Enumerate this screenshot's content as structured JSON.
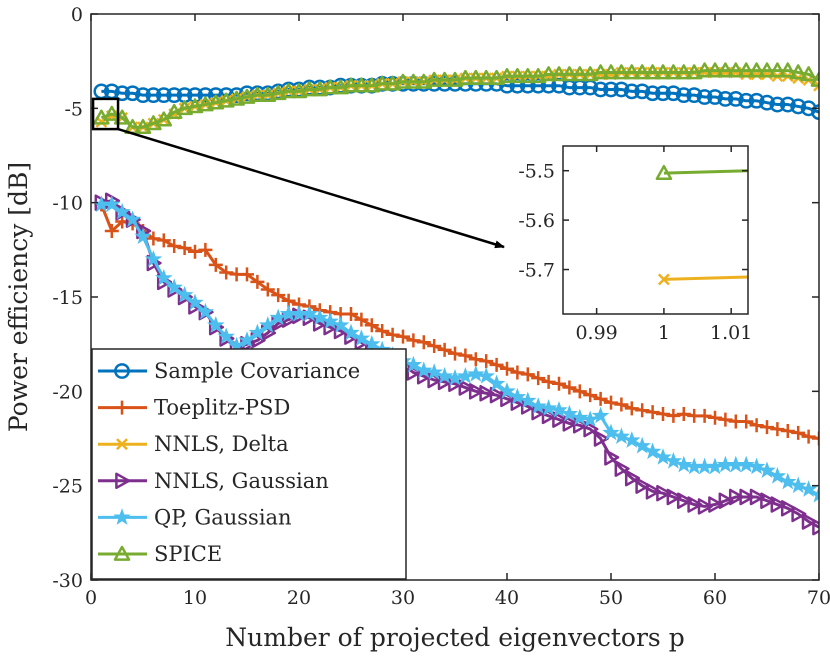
{
  "chart_data": {
    "type": "line",
    "title": "",
    "xlabel": "Number of projected eigenvectors p",
    "ylabel": "Power efficiency [dB]",
    "xlim": [
      0,
      70
    ],
    "ylim": [
      -30,
      0
    ],
    "xticks": [
      "0",
      "10",
      "20",
      "30",
      "40",
      "50",
      "60",
      "70"
    ],
    "yticks": [
      "0",
      "-5",
      "-10",
      "-15",
      "-20",
      "-25",
      "-30"
    ],
    "grid": false,
    "legend_position": "bottom-left",
    "colors": {
      "sample_covariance": "#0072BD",
      "toeplitz_psd": "#D95319",
      "nnls_delta": "#EDB120",
      "nnls_gaussian": "#7E2F8E",
      "qp_gaussian": "#4DBEEE",
      "spice": "#77AC30",
      "annotation": "#000000"
    },
    "series": [
      {
        "name": "Sample Covariance",
        "marker": "circle",
        "color": "#0072BD",
        "x": [
          1,
          2,
          3,
          4,
          5,
          6,
          7,
          8,
          9,
          10,
          11,
          12,
          13,
          14,
          15,
          16,
          17,
          18,
          19,
          20,
          21,
          22,
          23,
          24,
          25,
          26,
          27,
          28,
          29,
          30,
          31,
          32,
          33,
          34,
          35,
          36,
          37,
          38,
          39,
          40,
          41,
          42,
          43,
          44,
          45,
          46,
          47,
          48,
          49,
          50,
          51,
          52,
          53,
          54,
          55,
          56,
          57,
          58,
          59,
          60,
          61,
          62,
          63,
          64,
          65,
          66,
          67,
          68,
          69,
          70
        ],
        "y": [
          -4.1,
          -4.1,
          -4.2,
          -4.2,
          -4.3,
          -4.3,
          -4.3,
          -4.3,
          -4.3,
          -4.3,
          -4.3,
          -4.3,
          -4.3,
          -4.3,
          -4.2,
          -4.2,
          -4.2,
          -4.1,
          -4.0,
          -4.0,
          -3.9,
          -3.9,
          -3.9,
          -3.8,
          -3.8,
          -3.8,
          -3.8,
          -3.7,
          -3.7,
          -3.7,
          -3.7,
          -3.7,
          -3.7,
          -3.7,
          -3.7,
          -3.7,
          -3.7,
          -3.7,
          -3.7,
          -3.8,
          -3.8,
          -3.8,
          -3.8,
          -3.8,
          -3.8,
          -3.9,
          -3.9,
          -3.9,
          -4.0,
          -4.0,
          -4.0,
          -4.1,
          -4.1,
          -4.2,
          -4.2,
          -4.2,
          -4.3,
          -4.3,
          -4.4,
          -4.4,
          -4.5,
          -4.5,
          -4.6,
          -4.6,
          -4.7,
          -4.8,
          -4.8,
          -4.9,
          -5.0,
          -5.2
        ]
      },
      {
        "name": "Toeplitz-PSD",
        "marker": "plus",
        "color": "#D95319",
        "x": [
          1,
          2,
          3,
          4,
          5,
          6,
          7,
          8,
          9,
          10,
          11,
          12,
          13,
          14,
          15,
          16,
          17,
          18,
          19,
          20,
          21,
          22,
          23,
          24,
          25,
          26,
          27,
          28,
          29,
          30,
          31,
          32,
          33,
          34,
          35,
          36,
          37,
          38,
          39,
          40,
          41,
          42,
          43,
          44,
          45,
          46,
          47,
          48,
          49,
          50,
          51,
          52,
          53,
          54,
          55,
          56,
          57,
          58,
          59,
          60,
          61,
          62,
          63,
          64,
          65,
          66,
          67,
          68,
          69,
          70
        ],
        "y": [
          -10.1,
          -11.5,
          -11.0,
          -11.1,
          -11.5,
          -11.9,
          -12.0,
          -12.3,
          -12.4,
          -12.6,
          -12.5,
          -13.3,
          -13.7,
          -13.8,
          -13.8,
          -14.2,
          -14.6,
          -14.9,
          -15.2,
          -15.4,
          -15.5,
          -15.7,
          -15.8,
          -15.9,
          -15.9,
          -16.2,
          -16.5,
          -16.8,
          -17.0,
          -17.1,
          -17.3,
          -17.4,
          -17.6,
          -17.8,
          -18.0,
          -18.1,
          -18.3,
          -18.4,
          -18.6,
          -18.8,
          -19.0,
          -19.1,
          -19.3,
          -19.5,
          -19.6,
          -19.8,
          -20.0,
          -20.2,
          -20.4,
          -20.6,
          -20.7,
          -20.9,
          -21.0,
          -21.1,
          -21.2,
          -21.3,
          -21.2,
          -21.3,
          -21.3,
          -21.4,
          -21.5,
          -21.6,
          -21.6,
          -21.8,
          -21.9,
          -22.0,
          -22.1,
          -22.2,
          -22.4,
          -22.5
        ]
      },
      {
        "name": "NNLS, Delta",
        "marker": "x",
        "color": "#EDB120",
        "x": [
          1,
          2,
          3,
          4,
          5,
          6,
          7,
          8,
          9,
          10,
          11,
          12,
          13,
          14,
          15,
          16,
          17,
          18,
          19,
          20,
          21,
          22,
          23,
          24,
          25,
          26,
          27,
          28,
          29,
          30,
          31,
          32,
          33,
          34,
          35,
          36,
          37,
          38,
          39,
          40,
          41,
          42,
          43,
          44,
          45,
          46,
          47,
          48,
          49,
          50,
          51,
          52,
          53,
          54,
          55,
          56,
          57,
          58,
          59,
          60,
          61,
          62,
          63,
          64,
          65,
          66,
          67,
          68,
          69,
          70
        ],
        "y": [
          -5.72,
          -5.4,
          -5.5,
          -6.0,
          -6.0,
          -5.8,
          -5.6,
          -5.3,
          -5.0,
          -4.9,
          -4.8,
          -4.7,
          -4.6,
          -4.5,
          -4.4,
          -4.3,
          -4.3,
          -4.2,
          -4.1,
          -4.1,
          -4.0,
          -4.0,
          -3.9,
          -3.9,
          -3.8,
          -3.8,
          -3.8,
          -3.7,
          -3.7,
          -3.6,
          -3.6,
          -3.6,
          -3.5,
          -3.5,
          -3.5,
          -3.4,
          -3.4,
          -3.4,
          -3.4,
          -3.3,
          -3.3,
          -3.3,
          -3.3,
          -3.3,
          -3.2,
          -3.2,
          -3.2,
          -3.2,
          -3.2,
          -3.2,
          -3.1,
          -3.1,
          -3.1,
          -3.1,
          -3.1,
          -3.1,
          -3.1,
          -3.1,
          -3.1,
          -3.1,
          -3.1,
          -3.1,
          -3.2,
          -3.2,
          -3.2,
          -3.3,
          -3.3,
          -3.4,
          -3.5,
          -3.8
        ]
      },
      {
        "name": "NNLS, Gaussian",
        "marker": "triangle-right",
        "color": "#7E2F8E",
        "x": [
          1,
          2,
          3,
          4,
          5,
          6,
          7,
          8,
          9,
          10,
          11,
          12,
          13,
          14,
          15,
          16,
          17,
          18,
          19,
          20,
          21,
          22,
          23,
          24,
          25,
          26,
          27,
          28,
          29,
          30,
          31,
          32,
          33,
          34,
          35,
          36,
          37,
          38,
          39,
          40,
          41,
          42,
          43,
          44,
          45,
          46,
          47,
          48,
          49,
          50,
          51,
          52,
          53,
          54,
          55,
          56,
          57,
          58,
          59,
          60,
          61,
          62,
          63,
          64,
          65,
          66,
          67,
          68,
          69,
          70
        ],
        "y": [
          -10.0,
          -9.9,
          -10.5,
          -10.9,
          -11.5,
          -13.2,
          -14.2,
          -14.6,
          -15.0,
          -15.5,
          -15.8,
          -16.6,
          -17.2,
          -17.7,
          -17.5,
          -17.3,
          -16.9,
          -16.4,
          -16.2,
          -16.0,
          -16.1,
          -16.4,
          -16.6,
          -16.8,
          -17.1,
          -17.4,
          -17.7,
          -18.0,
          -18.3,
          -18.6,
          -19.0,
          -19.2,
          -19.4,
          -19.5,
          -19.6,
          -19.8,
          -20.0,
          -20.1,
          -20.2,
          -20.4,
          -20.6,
          -20.8,
          -21.1,
          -21.3,
          -21.5,
          -21.7,
          -21.8,
          -22.0,
          -22.5,
          -23.5,
          -24.1,
          -24.6,
          -25.0,
          -25.3,
          -25.4,
          -25.6,
          -25.8,
          -26.0,
          -26.1,
          -26.0,
          -25.8,
          -25.6,
          -25.6,
          -25.6,
          -25.8,
          -26.0,
          -26.2,
          -26.5,
          -26.9,
          -27.2
        ]
      },
      {
        "name": "QP, Gaussian",
        "marker": "star",
        "color": "#4DBEEE",
        "x": [
          1,
          2,
          3,
          4,
          5,
          6,
          7,
          8,
          9,
          10,
          11,
          12,
          13,
          14,
          15,
          16,
          17,
          18,
          19,
          20,
          21,
          22,
          23,
          24,
          25,
          26,
          27,
          28,
          29,
          30,
          31,
          32,
          33,
          34,
          35,
          36,
          37,
          38,
          39,
          40,
          41,
          42,
          43,
          44,
          45,
          46,
          47,
          48,
          49,
          50,
          51,
          52,
          53,
          54,
          55,
          56,
          57,
          58,
          59,
          60,
          61,
          62,
          63,
          64,
          65,
          66,
          67,
          68,
          69,
          70
        ],
        "y": [
          -10.1,
          -10.1,
          -10.5,
          -10.9,
          -11.8,
          -13.0,
          -14.0,
          -14.5,
          -14.9,
          -15.3,
          -15.8,
          -16.5,
          -17.1,
          -17.6,
          -17.3,
          -16.9,
          -16.5,
          -16.1,
          -15.9,
          -15.9,
          -15.9,
          -16.1,
          -16.3,
          -16.5,
          -16.9,
          -17.2,
          -17.5,
          -17.8,
          -18.1,
          -18.4,
          -18.6,
          -18.9,
          -19.0,
          -19.2,
          -19.3,
          -19.2,
          -19.1,
          -19.2,
          -19.6,
          -20.0,
          -20.3,
          -20.5,
          -20.8,
          -20.9,
          -21.0,
          -21.2,
          -21.4,
          -21.5,
          -21.3,
          -22.2,
          -22.4,
          -22.6,
          -22.9,
          -23.2,
          -23.5,
          -23.7,
          -23.9,
          -24.0,
          -24.0,
          -24.0,
          -23.9,
          -23.9,
          -23.9,
          -24.0,
          -24.2,
          -24.5,
          -24.8,
          -25.0,
          -25.2,
          -25.5
        ]
      },
      {
        "name": "SPICE",
        "marker": "triangle-up",
        "color": "#77AC30",
        "x": [
          1,
          2,
          3,
          4,
          5,
          6,
          7,
          8,
          9,
          10,
          11,
          12,
          13,
          14,
          15,
          16,
          17,
          18,
          19,
          20,
          21,
          22,
          23,
          24,
          25,
          26,
          27,
          28,
          29,
          30,
          31,
          32,
          33,
          34,
          35,
          36,
          37,
          38,
          39,
          40,
          41,
          42,
          43,
          44,
          45,
          46,
          47,
          48,
          49,
          50,
          51,
          52,
          53,
          54,
          55,
          56,
          57,
          58,
          59,
          60,
          61,
          62,
          63,
          64,
          65,
          66,
          67,
          68,
          69,
          70
        ],
        "y": [
          -5.5,
          -5.3,
          -5.5,
          -6.0,
          -6.0,
          -5.8,
          -5.6,
          -5.2,
          -5.0,
          -4.9,
          -4.8,
          -4.7,
          -4.6,
          -4.5,
          -4.4,
          -4.3,
          -4.3,
          -4.2,
          -4.1,
          -4.1,
          -4.0,
          -4.0,
          -3.9,
          -3.9,
          -3.8,
          -3.8,
          -3.8,
          -3.7,
          -3.7,
          -3.6,
          -3.6,
          -3.6,
          -3.5,
          -3.5,
          -3.5,
          -3.4,
          -3.4,
          -3.4,
          -3.4,
          -3.3,
          -3.3,
          -3.3,
          -3.3,
          -3.2,
          -3.2,
          -3.2,
          -3.2,
          -3.2,
          -3.1,
          -3.1,
          -3.1,
          -3.1,
          -3.1,
          -3.1,
          -3.1,
          -3.1,
          -3.1,
          -3.1,
          -3.0,
          -3.0,
          -3.0,
          -3.0,
          -3.0,
          -3.0,
          -3.0,
          -3.0,
          -3.0,
          -3.1,
          -3.2,
          -3.5
        ]
      }
    ],
    "inset": {
      "xlim": [
        0.985,
        1.0125
      ],
      "ylim": [
        -5.79,
        -5.45
      ],
      "xticks": [
        "0.99",
        "1",
        "1.01"
      ],
      "yticks": [
        "-5.5",
        "-5.6",
        "-5.7"
      ],
      "zoom_region": {
        "xlim": [
          0.2,
          2.6
        ],
        "ylim": [
          -6.1,
          -4.5
        ]
      },
      "series": [
        {
          "name": "SPICE",
          "marker": "triangle-up",
          "color": "#77AC30",
          "x": [
            1,
            1.0125
          ],
          "y": [
            -5.505,
            -5.5
          ]
        },
        {
          "name": "NNLS, Delta",
          "marker": "x",
          "color": "#EDB120",
          "x": [
            1,
            1.0125
          ],
          "y": [
            -5.72,
            -5.715
          ]
        }
      ]
    }
  }
}
